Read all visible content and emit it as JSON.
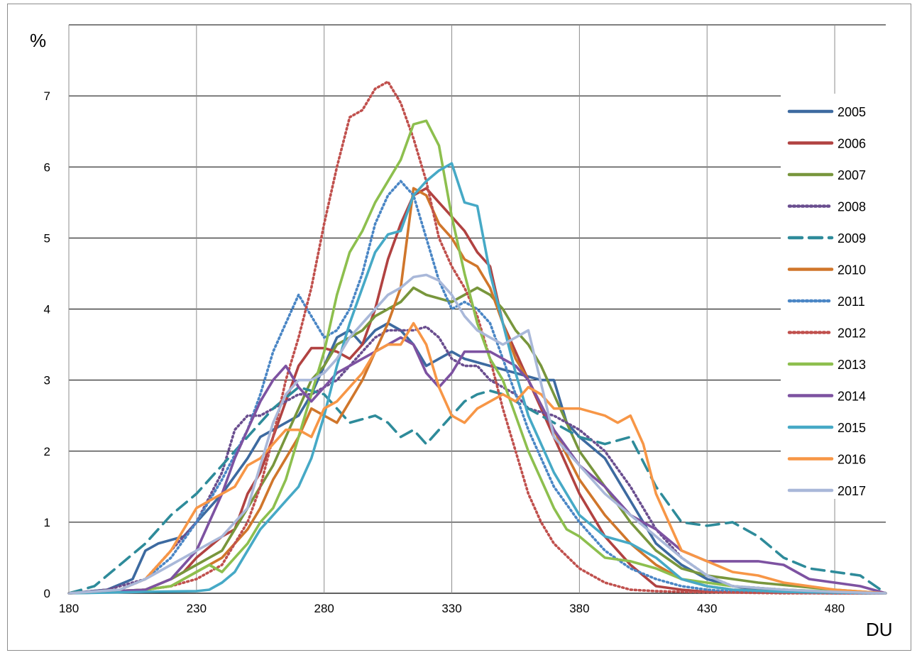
{
  "chart_data": {
    "type": "line",
    "title": "",
    "xlabel": "DU",
    "ylabel": "%",
    "xlim": [
      180,
      500
    ],
    "ylim": [
      0,
      8
    ],
    "xticks": [
      180,
      230,
      280,
      330,
      380,
      430,
      480
    ],
    "yticks": [
      0,
      1,
      2,
      3,
      4,
      5,
      6,
      7
    ],
    "grid": true,
    "legend_position": "right",
    "series": [
      {
        "name": "2005",
        "color": "#3d6aa0",
        "dash": "solid",
        "x": [
          180,
          195,
          205,
          210,
          215,
          225,
          230,
          240,
          250,
          255,
          260,
          265,
          270,
          275,
          285,
          290,
          295,
          300,
          305,
          310,
          315,
          320,
          325,
          330,
          335,
          345,
          355,
          365,
          370,
          375,
          380,
          390,
          395,
          400,
          410,
          420,
          430,
          440,
          450,
          460,
          480,
          500
        ],
        "y": [
          0,
          0.05,
          0.2,
          0.6,
          0.7,
          0.8,
          1.0,
          1.4,
          1.9,
          2.2,
          2.3,
          2.4,
          2.5,
          2.8,
          3.6,
          3.7,
          3.5,
          3.7,
          3.8,
          3.7,
          3.5,
          3.2,
          3.3,
          3.4,
          3.3,
          3.2,
          3.1,
          3.0,
          3.0,
          2.4,
          2.2,
          1.9,
          1.6,
          1.3,
          0.7,
          0.4,
          0.2,
          0.1,
          0.05,
          0.05,
          0.02,
          0
        ]
      },
      {
        "name": "2006",
        "color": "#b14241",
        "dash": "solid",
        "x": [
          180,
          200,
          210,
          220,
          225,
          230,
          240,
          245,
          250,
          255,
          260,
          265,
          270,
          275,
          280,
          285,
          290,
          295,
          300,
          305,
          310,
          315,
          320,
          325,
          330,
          335,
          340,
          345,
          350,
          360,
          370,
          380,
          390,
          400,
          410,
          420,
          430,
          450,
          480,
          500
        ],
        "y": [
          0,
          0.02,
          0.05,
          0.2,
          0.3,
          0.5,
          0.8,
          0.9,
          1.4,
          1.7,
          2.2,
          2.7,
          3.2,
          3.45,
          3.45,
          3.4,
          3.3,
          3.5,
          4.0,
          4.7,
          5.2,
          5.6,
          5.7,
          5.5,
          5.3,
          5.1,
          4.8,
          4.6,
          3.8,
          3.0,
          2.2,
          1.4,
          0.8,
          0.4,
          0.1,
          0.05,
          0.02,
          0.01,
          0,
          0
        ]
      },
      {
        "name": "2007",
        "color": "#78963c",
        "dash": "solid",
        "x": [
          180,
          210,
          220,
          225,
          230,
          240,
          245,
          250,
          255,
          260,
          265,
          270,
          275,
          280,
          285,
          290,
          295,
          300,
          305,
          310,
          315,
          320,
          325,
          330,
          335,
          340,
          345,
          350,
          355,
          360,
          365,
          370,
          380,
          390,
          400,
          410,
          420,
          430,
          440,
          450,
          480,
          500
        ],
        "y": [
          0,
          0.05,
          0.2,
          0.3,
          0.4,
          0.6,
          0.9,
          1.2,
          1.5,
          1.8,
          2.2,
          2.6,
          3.0,
          3.2,
          3.5,
          3.6,
          3.7,
          3.9,
          4.0,
          4.1,
          4.3,
          4.2,
          4.15,
          4.1,
          4.2,
          4.3,
          4.2,
          4.0,
          3.7,
          3.5,
          3.2,
          2.8,
          2.0,
          1.5,
          1.0,
          0.6,
          0.35,
          0.25,
          0.2,
          0.15,
          0.05,
          0
        ]
      },
      {
        "name": "2008",
        "color": "#6a4e8f",
        "dash": "dotted",
        "x": [
          180,
          195,
          210,
          220,
          230,
          240,
          245,
          250,
          255,
          260,
          265,
          270,
          275,
          280,
          285,
          290,
          295,
          300,
          305,
          310,
          315,
          320,
          325,
          330,
          335,
          340,
          345,
          350,
          355,
          360,
          370,
          380,
          390,
          400,
          410,
          420,
          430,
          440,
          460,
          480,
          500
        ],
        "y": [
          0,
          0.05,
          0.2,
          0.6,
          1.0,
          1.7,
          2.3,
          2.5,
          2.5,
          2.6,
          2.7,
          2.8,
          2.8,
          2.9,
          3.0,
          3.2,
          3.4,
          3.6,
          3.7,
          3.7,
          3.7,
          3.75,
          3.6,
          3.3,
          3.2,
          3.2,
          3.0,
          2.9,
          2.8,
          2.6,
          2.5,
          2.3,
          2.0,
          1.5,
          0.9,
          0.5,
          0.25,
          0.1,
          0.05,
          0.02,
          0
        ]
      },
      {
        "name": "2009",
        "color": "#2e8b9a",
        "dash": "dashed",
        "x": [
          180,
          190,
          200,
          210,
          220,
          230,
          240,
          250,
          260,
          270,
          280,
          290,
          300,
          305,
          310,
          315,
          320,
          325,
          330,
          335,
          340,
          345,
          350,
          360,
          370,
          380,
          390,
          400,
          410,
          420,
          430,
          440,
          450,
          460,
          470,
          480,
          490,
          500
        ],
        "y": [
          0,
          0.1,
          0.4,
          0.7,
          1.1,
          1.4,
          1.8,
          2.2,
          2.6,
          2.9,
          2.8,
          2.4,
          2.5,
          2.4,
          2.2,
          2.3,
          2.1,
          2.3,
          2.5,
          2.7,
          2.8,
          2.85,
          2.8,
          2.6,
          2.4,
          2.2,
          2.1,
          2.2,
          1.5,
          1.0,
          0.95,
          1.0,
          0.8,
          0.5,
          0.35,
          0.3,
          0.25,
          0
        ]
      },
      {
        "name": "2010",
        "color": "#d0762b",
        "dash": "solid",
        "x": [
          180,
          210,
          220,
          230,
          235,
          240,
          250,
          255,
          260,
          270,
          275,
          280,
          285,
          290,
          295,
          300,
          305,
          310,
          315,
          320,
          325,
          330,
          335,
          340,
          345,
          350,
          355,
          360,
          370,
          380,
          390,
          400,
          410,
          420,
          430,
          440,
          460,
          480,
          500
        ],
        "y": [
          0,
          0.05,
          0.1,
          0.3,
          0.4,
          0.5,
          0.9,
          1.2,
          1.6,
          2.2,
          2.6,
          2.5,
          2.4,
          2.7,
          3.0,
          3.4,
          3.8,
          4.3,
          5.7,
          5.6,
          5.2,
          5.0,
          4.7,
          4.6,
          4.3,
          3.8,
          3.3,
          3.0,
          2.3,
          1.6,
          1.1,
          0.7,
          0.4,
          0.2,
          0.1,
          0.05,
          0.02,
          0.01,
          0
        ]
      },
      {
        "name": "2011",
        "color": "#4a86c5",
        "dash": "dotted",
        "x": [
          180,
          200,
          210,
          220,
          230,
          240,
          250,
          255,
          260,
          265,
          270,
          275,
          280,
          285,
          290,
          295,
          300,
          305,
          310,
          315,
          320,
          325,
          330,
          335,
          340,
          345,
          350,
          355,
          360,
          370,
          380,
          390,
          400,
          410,
          420,
          430,
          440,
          460,
          480,
          500
        ],
        "y": [
          0,
          0.05,
          0.2,
          0.5,
          1.0,
          1.6,
          2.3,
          2.8,
          3.4,
          3.8,
          4.2,
          3.9,
          3.6,
          3.7,
          4.0,
          4.5,
          5.2,
          5.6,
          5.8,
          5.6,
          5.0,
          4.4,
          4.0,
          4.1,
          4.0,
          3.8,
          3.3,
          2.8,
          2.3,
          1.5,
          1.0,
          0.6,
          0.35,
          0.2,
          0.1,
          0.05,
          0.02,
          0.01,
          0,
          0
        ]
      },
      {
        "name": "2012",
        "color": "#c0504d",
        "dash": "dotted",
        "x": [
          180,
          210,
          220,
          230,
          240,
          245,
          250,
          255,
          260,
          265,
          270,
          275,
          280,
          285,
          290,
          295,
          300,
          305,
          310,
          315,
          320,
          325,
          330,
          335,
          340,
          345,
          350,
          355,
          360,
          365,
          370,
          380,
          390,
          400,
          410,
          420,
          440,
          460,
          480,
          500
        ],
        "y": [
          0,
          0.05,
          0.1,
          0.2,
          0.4,
          0.7,
          1.0,
          1.5,
          2.2,
          3.0,
          3.6,
          4.3,
          5.2,
          6.0,
          6.7,
          6.8,
          7.1,
          7.2,
          6.9,
          6.4,
          5.8,
          5.0,
          4.6,
          4.3,
          3.9,
          3.3,
          2.6,
          2.0,
          1.4,
          1.0,
          0.7,
          0.35,
          0.15,
          0.05,
          0.03,
          0.02,
          0.01,
          0,
          0,
          0
        ]
      },
      {
        "name": "2013",
        "color": "#8dbf4e",
        "dash": "solid",
        "x": [
          180,
          210,
          220,
          230,
          235,
          240,
          245,
          250,
          255,
          260,
          265,
          270,
          275,
          280,
          285,
          290,
          295,
          300,
          305,
          310,
          315,
          320,
          325,
          330,
          335,
          340,
          345,
          350,
          355,
          360,
          365,
          370,
          375,
          380,
          390,
          400,
          410,
          420,
          440,
          460,
          500
        ],
        "y": [
          0,
          0.05,
          0.1,
          0.3,
          0.4,
          0.3,
          0.5,
          0.7,
          1.0,
          1.2,
          1.6,
          2.2,
          2.8,
          3.4,
          4.2,
          4.8,
          5.1,
          5.5,
          5.8,
          6.1,
          6.6,
          6.65,
          6.3,
          5.3,
          4.5,
          3.8,
          3.3,
          3.0,
          2.5,
          2.0,
          1.6,
          1.2,
          0.9,
          0.8,
          0.5,
          0.45,
          0.35,
          0.2,
          0.1,
          0.05,
          0
        ]
      },
      {
        "name": "2014",
        "color": "#7d52a1",
        "dash": "solid",
        "x": [
          180,
          210,
          220,
          230,
          240,
          245,
          250,
          255,
          260,
          265,
          270,
          275,
          280,
          285,
          290,
          295,
          300,
          305,
          310,
          315,
          320,
          325,
          330,
          335,
          340,
          345,
          350,
          355,
          360,
          370,
          380,
          390,
          400,
          410,
          420,
          430,
          440,
          450,
          460,
          470,
          480,
          490,
          500
        ],
        "y": [
          0,
          0.05,
          0.2,
          0.6,
          1.4,
          1.9,
          2.3,
          2.7,
          3.0,
          3.2,
          2.9,
          2.7,
          2.9,
          3.1,
          3.2,
          3.3,
          3.4,
          3.5,
          3.6,
          3.5,
          3.1,
          2.9,
          3.1,
          3.4,
          3.4,
          3.4,
          3.3,
          3.2,
          3.0,
          2.3,
          1.8,
          1.5,
          1.1,
          0.9,
          0.6,
          0.45,
          0.45,
          0.45,
          0.4,
          0.2,
          0.15,
          0.1,
          0
        ]
      },
      {
        "name": "2015",
        "color": "#46a9c6",
        "dash": "solid",
        "x": [
          180,
          210,
          230,
          235,
          240,
          245,
          250,
          255,
          260,
          265,
          270,
          275,
          280,
          285,
          290,
          295,
          300,
          305,
          310,
          315,
          320,
          325,
          330,
          335,
          340,
          345,
          350,
          355,
          360,
          365,
          370,
          380,
          390,
          400,
          410,
          420,
          430,
          440,
          460,
          480,
          500
        ],
        "y": [
          0,
          0.02,
          0.03,
          0.05,
          0.15,
          0.3,
          0.6,
          0.9,
          1.1,
          1.3,
          1.5,
          1.9,
          2.5,
          3.2,
          3.8,
          4.3,
          4.8,
          5.05,
          5.1,
          5.6,
          5.8,
          5.95,
          6.05,
          5.5,
          5.45,
          4.5,
          3.8,
          3.1,
          2.5,
          2.1,
          1.7,
          1.1,
          0.8,
          0.7,
          0.5,
          0.2,
          0.1,
          0.05,
          0.02,
          0.01,
          0
        ]
      },
      {
        "name": "2016",
        "color": "#f79646",
        "dash": "solid",
        "x": [
          180,
          200,
          210,
          220,
          230,
          235,
          240,
          245,
          250,
          255,
          260,
          265,
          270,
          275,
          280,
          285,
          290,
          295,
          300,
          305,
          310,
          315,
          320,
          325,
          330,
          335,
          340,
          345,
          350,
          355,
          360,
          365,
          370,
          380,
          390,
          395,
          400,
          405,
          410,
          420,
          430,
          440,
          450,
          460,
          480,
          500
        ],
        "y": [
          0,
          0.05,
          0.2,
          0.6,
          1.2,
          1.3,
          1.4,
          1.5,
          1.8,
          1.9,
          2.1,
          2.3,
          2.3,
          2.2,
          2.6,
          2.7,
          2.9,
          3.1,
          3.4,
          3.5,
          3.5,
          3.8,
          3.5,
          2.9,
          2.5,
          2.4,
          2.6,
          2.7,
          2.8,
          2.7,
          2.9,
          2.8,
          2.6,
          2.6,
          2.5,
          2.4,
          2.5,
          2.1,
          1.4,
          0.6,
          0.45,
          0.3,
          0.25,
          0.15,
          0.05,
          0
        ]
      },
      {
        "name": "2017",
        "color": "#a9b8d9",
        "dash": "solid",
        "x": [
          180,
          200,
          210,
          220,
          230,
          240,
          250,
          255,
          260,
          265,
          270,
          275,
          280,
          285,
          290,
          295,
          300,
          305,
          310,
          315,
          320,
          325,
          330,
          335,
          340,
          345,
          350,
          355,
          360,
          370,
          380,
          390,
          400,
          410,
          420,
          430,
          440,
          460,
          480,
          500
        ],
        "y": [
          0,
          0.05,
          0.2,
          0.4,
          0.6,
          0.8,
          1.2,
          1.8,
          2.4,
          2.8,
          3.0,
          3.0,
          3.1,
          3.3,
          3.6,
          3.8,
          4.0,
          4.2,
          4.3,
          4.45,
          4.48,
          4.4,
          4.2,
          3.9,
          3.7,
          3.6,
          3.5,
          3.6,
          3.7,
          2.2,
          1.8,
          1.4,
          1.1,
          0.8,
          0.5,
          0.25,
          0.1,
          0.05,
          0.02,
          0
        ]
      }
    ]
  }
}
